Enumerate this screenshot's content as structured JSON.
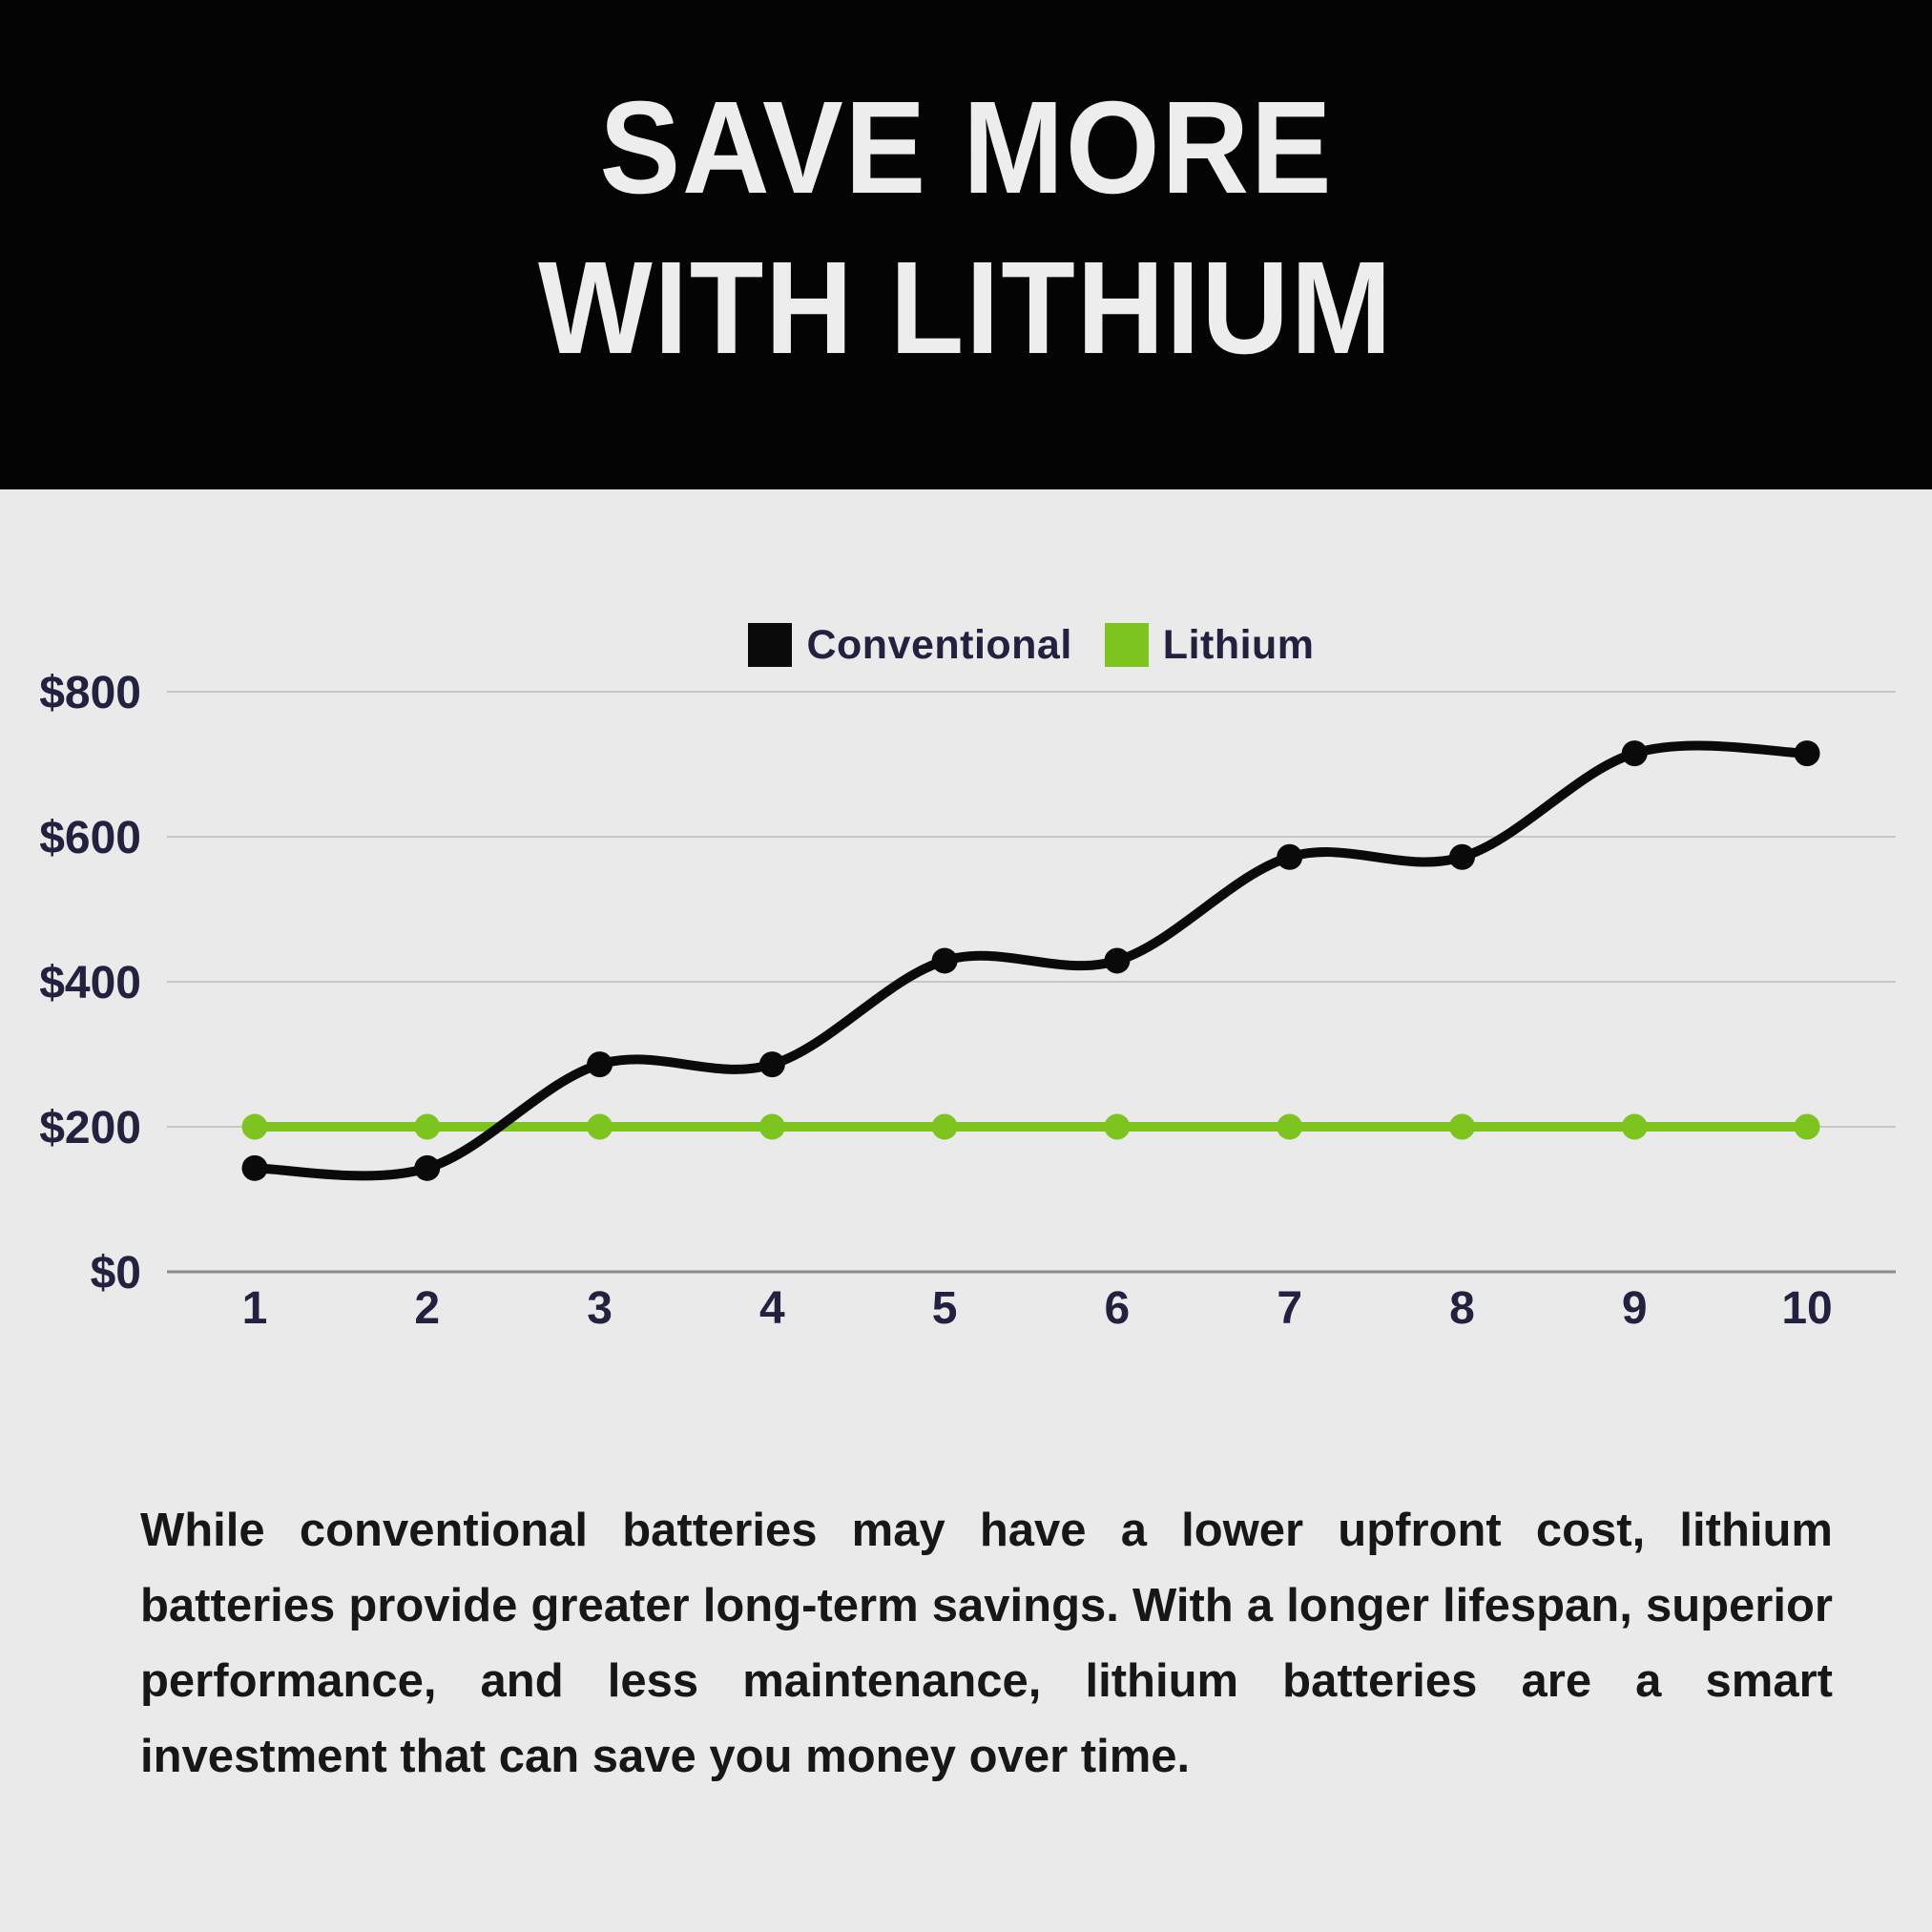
{
  "header": {
    "title_line1": "SAVE MORE",
    "title_line2": "WITH LITHIUM"
  },
  "chart_data": {
    "type": "line",
    "x": [
      1,
      2,
      3,
      4,
      5,
      6,
      7,
      8,
      9,
      10
    ],
    "x_tick_labels": [
      "1",
      "2",
      "3",
      "4",
      "5",
      "6",
      "7",
      "8",
      "9",
      "10"
    ],
    "series": [
      {
        "name": "Conventional",
        "color": "#0a0a0a",
        "values": [
          143,
          143,
          286,
          286,
          429,
          429,
          572,
          572,
          715,
          715
        ]
      },
      {
        "name": "Lithium",
        "color": "#7ec41f",
        "values": [
          200,
          200,
          200,
          200,
          200,
          200,
          200,
          200,
          200,
          200
        ]
      }
    ],
    "ytick_values": [
      0,
      200,
      400,
      600,
      800
    ],
    "ytick_labels": [
      "$0",
      "$200",
      "$400",
      "$600",
      "$800"
    ],
    "ylim": [
      0,
      800
    ],
    "grid": true,
    "legend_position": "top-center",
    "curve": "smooth"
  },
  "body": {
    "paragraph": "While conventional batteries may have a lower upfront cost, lithium batteries provide greater long-term savings. With a longer lifespan, superior performance, and less maintenance, lithium batteries are a smart investment that can save you money over time."
  },
  "colors": {
    "background": "#eaeaea",
    "header_background": "#040404",
    "title_text": "#ededed",
    "axis_text": "#232140",
    "gridline": "#c7c7c7",
    "zero_axis": "#8a8a8a",
    "conventional_line": "#0a0a0a",
    "lithium_line": "#7ec41f",
    "paragraph_text": "#171717"
  }
}
